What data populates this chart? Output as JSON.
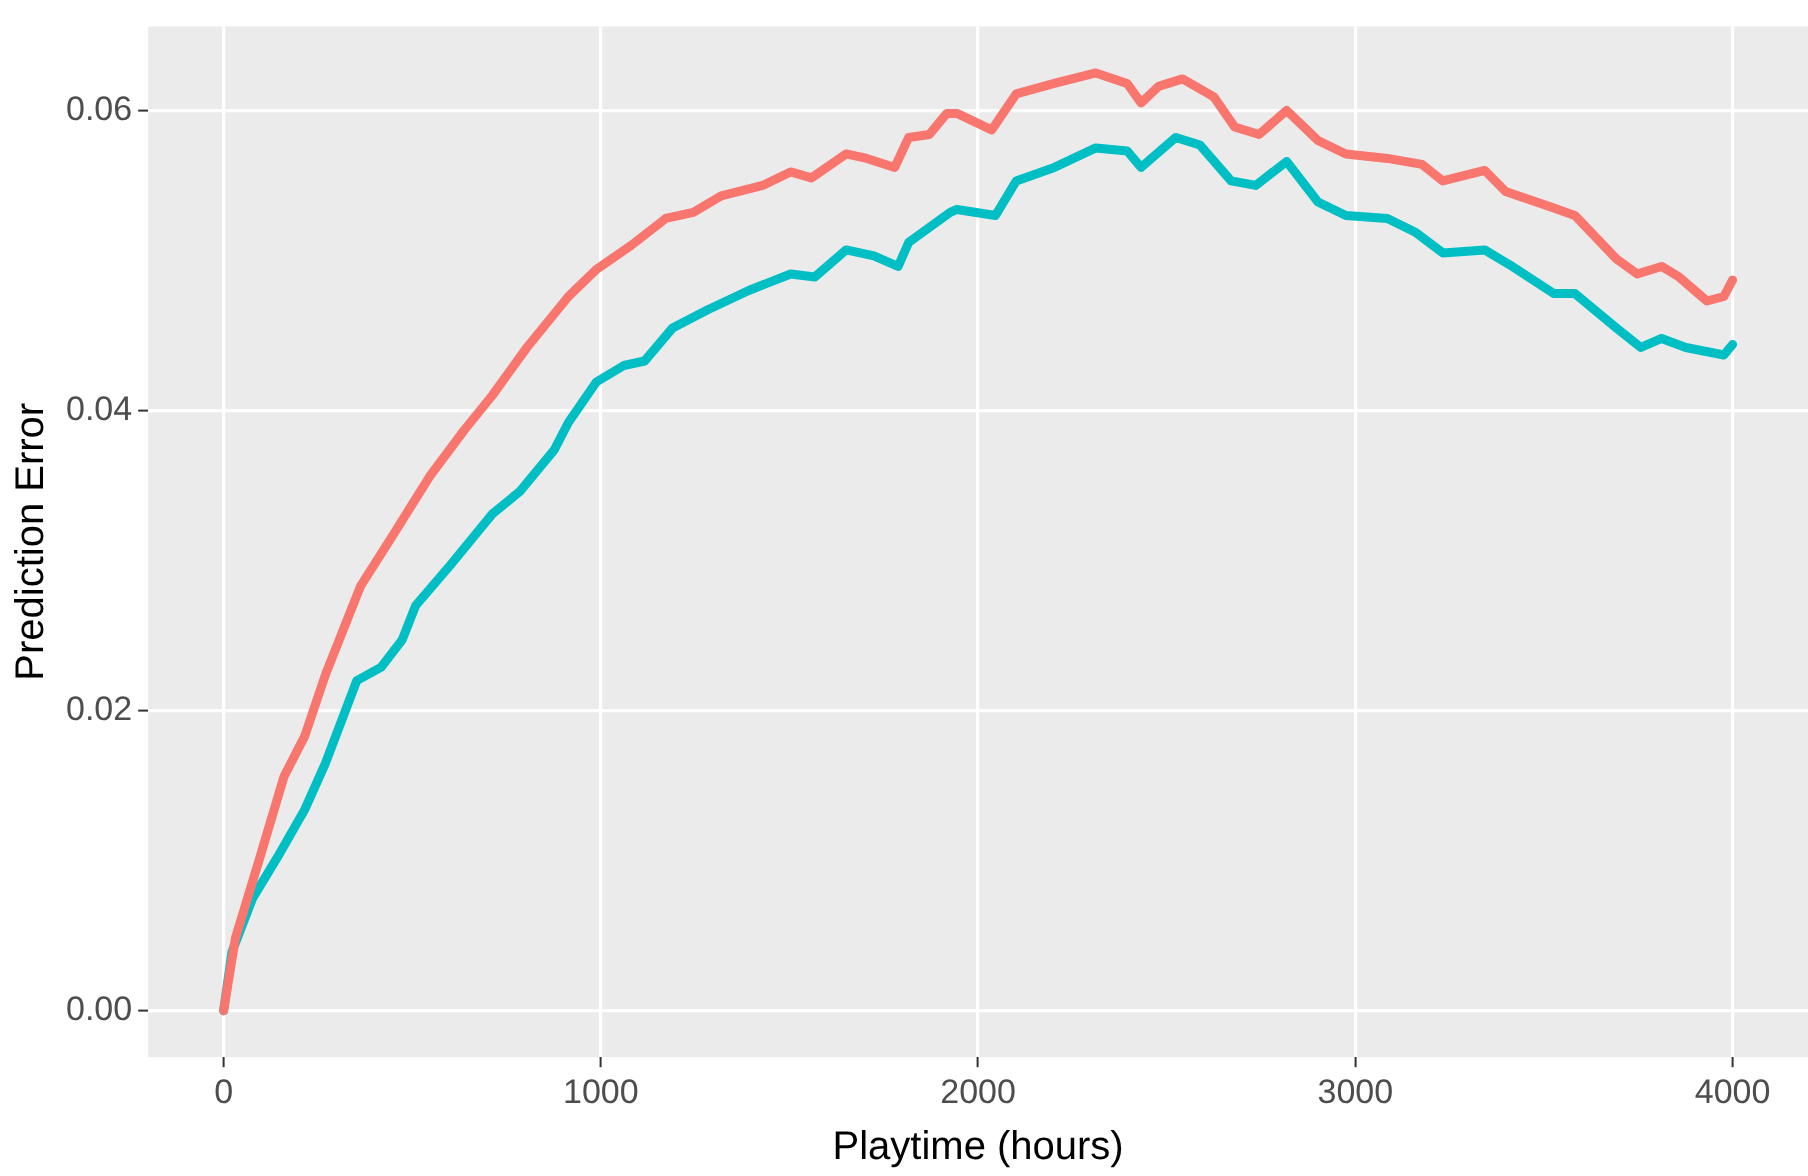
{
  "chart_data": {
    "type": "line",
    "xlabel": "Playtime (hours)",
    "ylabel": "Prediction Error",
    "xlim": [
      -200,
      4200
    ],
    "xticks": [
      0,
      1000,
      2000,
      3000,
      4000
    ],
    "ylim": [
      -0.0031,
      0.0656
    ],
    "yticks": [
      {
        "value": 0,
        "label": "0.00"
      },
      {
        "value": 0.02,
        "label": "0.02"
      },
      {
        "value": 0.04,
        "label": "0.04"
      },
      {
        "value": 0.06,
        "label": "0.06"
      }
    ],
    "grid": true,
    "legend": false,
    "marker": "none",
    "line_style": "solid",
    "series": [
      {
        "color": "#f8766d",
        "x": [
          0,
          31,
          96,
          160,
          215,
          270,
          363,
          454,
          546,
          638,
          712,
          804,
          914,
          988,
          1080,
          1172,
          1245,
          1319,
          1429,
          1503,
          1558,
          1650,
          1705,
          1779,
          1816,
          1871,
          1917,
          1944,
          2036,
          2101,
          2202,
          2312,
          2395,
          2432,
          2478,
          2542,
          2625,
          2680,
          2745,
          2818,
          2901,
          2975,
          3085,
          3177,
          3232,
          3343,
          3398,
          3526,
          3582,
          3692,
          3747,
          3812,
          3858,
          3932,
          3977,
          4000
        ],
        "values": [
          0,
          0.0048,
          0.0102,
          0.0156,
          0.0183,
          0.0224,
          0.0283,
          0.0319,
          0.0356,
          0.0387,
          0.041,
          0.0442,
          0.0476,
          0.0494,
          0.051,
          0.0528,
          0.0532,
          0.0543,
          0.055,
          0.0559,
          0.0555,
          0.0571,
          0.0568,
          0.0562,
          0.0582,
          0.0584,
          0.0598,
          0.0598,
          0.0587,
          0.0611,
          0.0618,
          0.0625,
          0.0618,
          0.0605,
          0.0616,
          0.0621,
          0.0609,
          0.0589,
          0.0584,
          0.06,
          0.058,
          0.0571,
          0.0568,
          0.0564,
          0.0553,
          0.056,
          0.0546,
          0.0535,
          0.053,
          0.0501,
          0.0491,
          0.0496,
          0.0489,
          0.0473,
          0.0476,
          0.0487
        ]
      },
      {
        "color": "#00bfc4",
        "x": [
          0,
          22,
          77,
          142,
          215,
          270,
          353,
          418,
          473,
          509,
          601,
          712,
          785,
          877,
          914,
          988,
          1061,
          1116,
          1190,
          1282,
          1392,
          1503,
          1567,
          1650,
          1724,
          1788,
          1816,
          1926,
          1944,
          2046,
          2101,
          2202,
          2312,
          2395,
          2432,
          2524,
          2588,
          2671,
          2736,
          2818,
          2901,
          2975,
          3085,
          3158,
          3232,
          3343,
          3416,
          3526,
          3582,
          3692,
          3757,
          3812,
          3876,
          3977,
          4000
        ],
        "values": [
          0,
          0.0039,
          0.0075,
          0.0102,
          0.0134,
          0.0165,
          0.022,
          0.0229,
          0.0247,
          0.027,
          0.0297,
          0.0331,
          0.0346,
          0.0374,
          0.0392,
          0.0419,
          0.043,
          0.0433,
          0.0455,
          0.0467,
          0.048,
          0.0491,
          0.0489,
          0.0507,
          0.0503,
          0.0496,
          0.0512,
          0.0532,
          0.0534,
          0.053,
          0.0553,
          0.0562,
          0.0575,
          0.0573,
          0.0562,
          0.0582,
          0.0577,
          0.0553,
          0.055,
          0.0566,
          0.0539,
          0.053,
          0.0528,
          0.0519,
          0.0505,
          0.0507,
          0.0496,
          0.0478,
          0.0478,
          0.0455,
          0.0442,
          0.0448,
          0.0442,
          0.0437,
          0.0444
        ]
      }
    ]
  }
}
